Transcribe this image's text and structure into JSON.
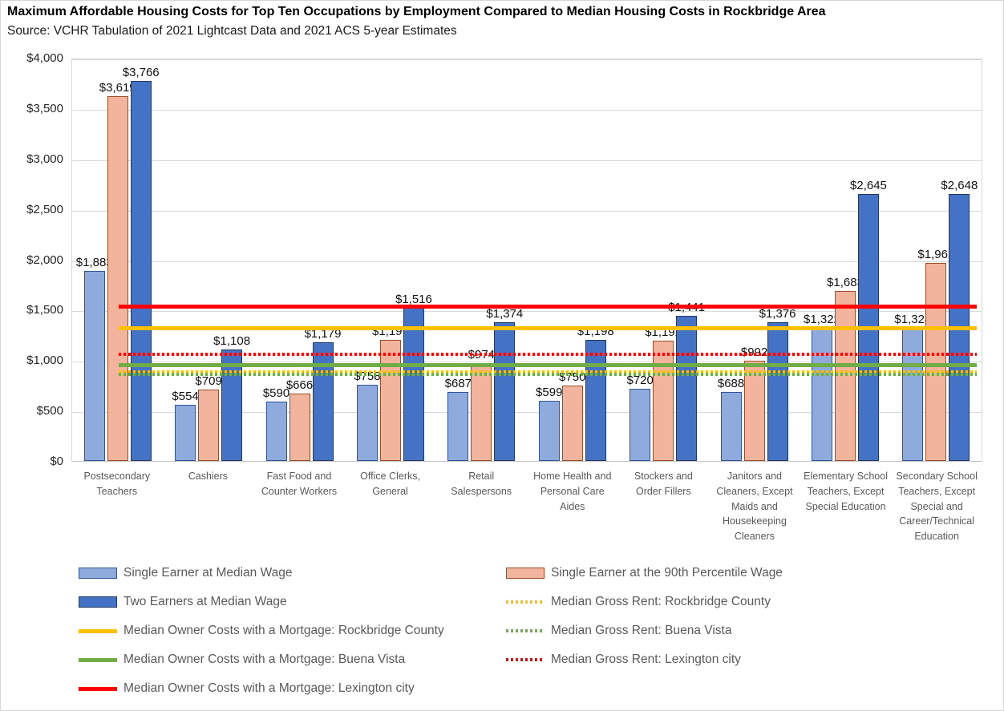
{
  "chart_data": {
    "type": "bar",
    "title": "Maximum Affordable Housing Costs for Top Ten Occupations by Employment Compared to Median Housing Costs in Rockbridge Area",
    "subtitle": "Source: VCHR Tabulation of 2021 Lightcast Data and 2021 ACS 5-year Estimates",
    "categories": [
      "Postsecondary Teachers",
      "Cashiers",
      "Fast Food and Counter Workers",
      "Office Clerks, General",
      "Retail Salespersons",
      "Home Health and Personal Care Aides",
      "Stockers and Order Fillers",
      "Janitors and Cleaners, Except Maids and Housekeeping Cleaners",
      "Elementary School Teachers, Except Special Education",
      "Secondary School Teachers, Except Special and Career/Technical Education"
    ],
    "series": [
      {
        "key": "single-earner-median-wage",
        "name": "Single Earner at Median Wage",
        "color": "#8FAADC",
        "border": "#2F5597",
        "values": [
          1883,
          554,
          590,
          758,
          687,
          599,
          720,
          688,
          1322,
          1324
        ]
      },
      {
        "key": "single-earner-90th-percentile-wage",
        "name": "Single Earner at the 90th Percentile Wage",
        "color": "#F3B49E",
        "border": "#9C4C24",
        "values": [
          3619,
          709,
          666,
          1199,
          974,
          750,
          1192,
          992,
          1683,
          1962
        ]
      },
      {
        "key": "two-earners-median-wage",
        "name": "Two Earners at Median Wage",
        "color": "#4472C4",
        "border": "#1F3864",
        "values": [
          3766,
          1108,
          1179,
          1516,
          1374,
          1198,
          1441,
          1376,
          2645,
          2648
        ]
      }
    ],
    "reference_lines": [
      {
        "key": "median-gross-rent-rockbridge-county",
        "name": "Median Gross Rent: Rockbridge County",
        "value": 885,
        "color": "#FFC000",
        "style": "dotted"
      },
      {
        "key": "median-gross-rent-buena-vista",
        "name": "Median Gross Rent: Buena Vista",
        "value": 860,
        "color": "#70AD47",
        "style": "dotted"
      },
      {
        "key": "median-gross-rent-lexington-city",
        "name": "Median Gross Rent: Lexington city",
        "value": 1055,
        "color": "#FF0000",
        "style": "dotted"
      },
      {
        "key": "median-owner-costs-mortgage-rockbridge-county",
        "name": "Median Owner Costs with a Mortgage: Rockbridge County",
        "value": 1310,
        "color": "#FFC000",
        "style": "solid"
      },
      {
        "key": "median-owner-costs-mortgage-buena-vista",
        "name": "Median Owner Costs with a Mortgage: Buena Vista",
        "value": 950,
        "color": "#70AD47",
        "style": "solid"
      },
      {
        "key": "median-owner-costs-mortgage-lexington-city",
        "name": "Median Owner Costs with a Mortgage: Lexington city",
        "value": 1530,
        "color": "#FF0000",
        "style": "solid"
      }
    ],
    "y_ticks": [
      "$0",
      "$500",
      "$1,000",
      "$1,500",
      "$2,000",
      "$2,500",
      "$3,000",
      "$3,500",
      "$4,000"
    ],
    "ylim": [
      0,
      4000
    ],
    "xlabel": "",
    "ylabel": "",
    "grid": true,
    "legend_position": "bottom"
  },
  "legend": {
    "columns": [
      [
        {
          "key": "single-earner-median-wage",
          "label": "Single Earner at Median Wage",
          "swatch": "bar",
          "fill": "#8FAADC",
          "border": "#2F5597"
        },
        {
          "key": "two-earners-median-wage",
          "label": "Two Earners at Median Wage",
          "swatch": "bar",
          "fill": "#4472C4",
          "border": "#1F3864"
        },
        {
          "key": "median-owner-costs-mortgage-rockbridge-county",
          "label": "Median Owner Costs with a Mortgage: Rockbridge County",
          "swatch": "line-solid",
          "color": "#FFC000"
        },
        {
          "key": "median-owner-costs-mortgage-buena-vista",
          "label": "Median Owner Costs with a Mortgage: Buena Vista",
          "swatch": "line-solid",
          "color": "#70AD47"
        },
        {
          "key": "median-owner-costs-mortgage-lexington-city",
          "label": "Median Owner Costs with a Mortgage: Lexington city",
          "swatch": "line-solid",
          "color": "#FF0000"
        }
      ],
      [
        {
          "key": "single-earner-90th-percentile-wage",
          "label": "Single Earner at the 90th Percentile Wage",
          "swatch": "bar",
          "fill": "#F3B49E",
          "border": "#9C4C24"
        },
        {
          "key": "median-gross-rent-rockbridge-county",
          "label": "Median Gross Rent: Rockbridge County",
          "swatch": "line-dotted",
          "color": "#FFC000"
        },
        {
          "key": "median-gross-rent-buena-vista",
          "label": "Median Gross Rent: Buena Vista",
          "swatch": "line-dotted",
          "color": "#70AD47"
        },
        {
          "key": "median-gross-rent-lexington-city",
          "label": "Median Gross Rent: Lexington city",
          "swatch": "line-dotted",
          "color": "#FF0000"
        }
      ]
    ]
  }
}
